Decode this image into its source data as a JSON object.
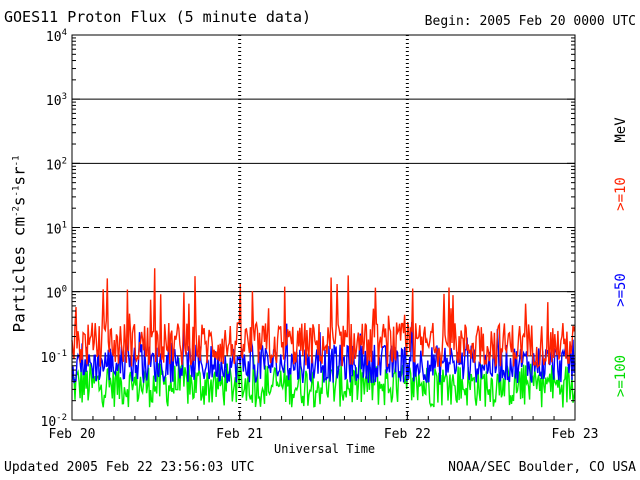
{
  "header": {
    "title": "GOES11 Proton Flux (5 minute data)",
    "begin": "Begin: 2005 Feb 20 0000 UTC"
  },
  "footer": {
    "updated": "Updated 2005 Feb 22 23:56:03 UTC",
    "credit": "NOAA/SEC Boulder, CO USA"
  },
  "chart_data": {
    "type": "line",
    "title": "GOES11 Proton Flux (5 minute data)",
    "xlabel": "Universal Time",
    "ylabel": "Particles cm-2s-1sr-1",
    "yscale": "log",
    "ylim": [
      0.01,
      10000
    ],
    "y_ticks": [
      {
        "base": "10",
        "exp": "-2"
      },
      {
        "base": "10",
        "exp": "-1"
      },
      {
        "base": "10",
        "exp": "0"
      },
      {
        "base": "10",
        "exp": "1"
      },
      {
        "base": "10",
        "exp": "2"
      },
      {
        "base": "10",
        "exp": "3"
      },
      {
        "base": "10",
        "exp": "4"
      }
    ],
    "x_ticks": [
      "Feb 20",
      "Feb 21",
      "Feb 22",
      "Feb 23"
    ],
    "thresholds": [
      {
        "value": 10,
        "style": "dashed"
      },
      {
        "value": 1,
        "style": "solid"
      },
      {
        "value": 100,
        "style": "solid"
      },
      {
        "value": 1000,
        "style": "solid"
      },
      {
        "value": 0.1,
        "style": "solid"
      }
    ],
    "energy_unit": "MeV",
    "series": [
      {
        "name": ">=10",
        "color": "#ff2200",
        "base": 0.15,
        "spread": 0.35,
        "spikes": 0.45
      },
      {
        "name": ">=50",
        "color": "#0000ff",
        "base": 0.075,
        "spread": 0.3,
        "spikes": 0.2
      },
      {
        "name": ">=100",
        "color": "#00ee00",
        "base": 0.035,
        "spread": 0.35,
        "spikes": 0.1
      }
    ]
  }
}
